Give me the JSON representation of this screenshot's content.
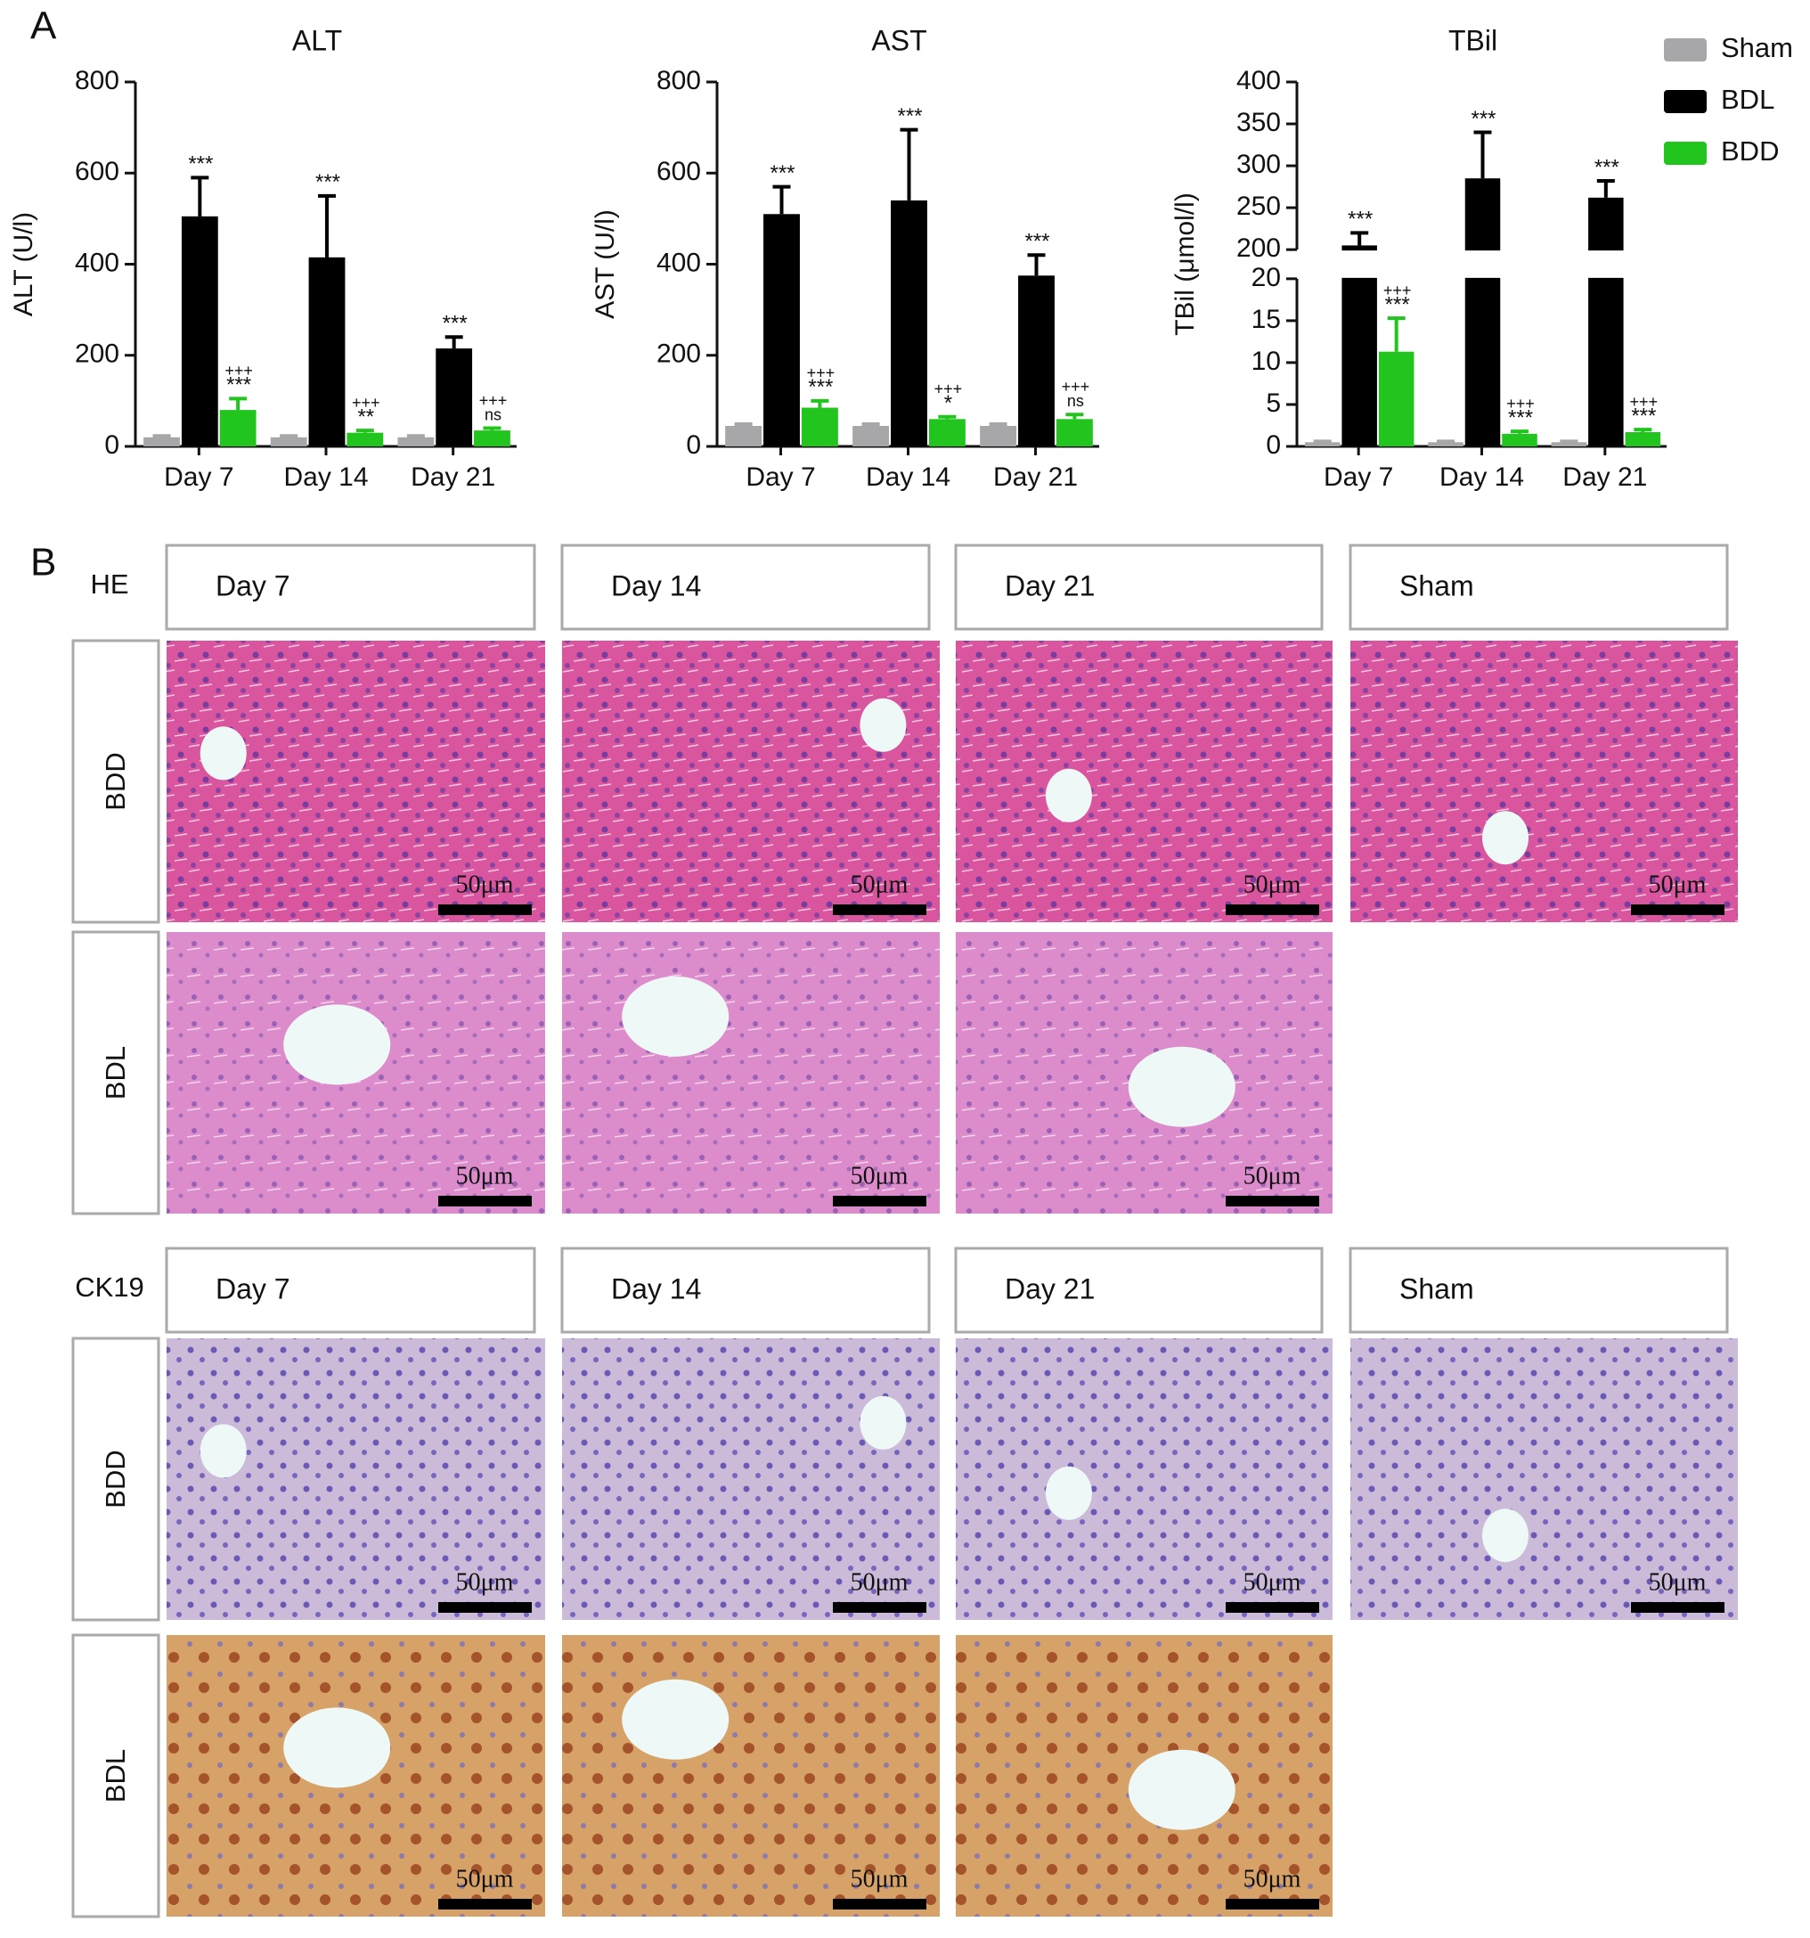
{
  "panel_a_label": "A",
  "chart_data": [
    {
      "type": "bar",
      "title": "ALT",
      "ylabel": "ALT (U/l)",
      "categories": [
        "Day 7",
        "Day 14",
        "Day 21"
      ],
      "ylim": [
        0,
        800
      ],
      "yticks": [
        0,
        200,
        400,
        600,
        800
      ],
      "series": [
        {
          "name": "Sham",
          "color": "#a7a7a9",
          "values": [
            20,
            20,
            20
          ],
          "errors": [
            3,
            3,
            3
          ]
        },
        {
          "name": "BDL",
          "color": "#000000",
          "values": [
            505,
            415,
            215
          ],
          "errors": [
            85,
            135,
            25
          ],
          "annotations": [
            [
              "***"
            ],
            [
              "***"
            ],
            [
              "***"
            ]
          ]
        },
        {
          "name": "BDD",
          "color": "#22c41e",
          "values": [
            80,
            30,
            35
          ],
          "errors": [
            25,
            5,
            5
          ],
          "annotations": [
            [
              "+++",
              "***"
            ],
            [
              "+++",
              "**"
            ],
            [
              "+++",
              "ns"
            ]
          ]
        }
      ]
    },
    {
      "type": "bar",
      "title": "AST",
      "ylabel": "AST (U/l)",
      "categories": [
        "Day 7",
        "Day 14",
        "Day 21"
      ],
      "ylim": [
        0,
        800
      ],
      "yticks": [
        0,
        200,
        400,
        600,
        800
      ],
      "series": [
        {
          "name": "Sham",
          "color": "#a7a7a9",
          "values": [
            45,
            45,
            45
          ],
          "errors": [
            4,
            4,
            4
          ]
        },
        {
          "name": "BDL",
          "color": "#000000",
          "values": [
            510,
            540,
            375
          ],
          "errors": [
            60,
            155,
            45
          ],
          "annotations": [
            [
              "***"
            ],
            [
              "***"
            ],
            [
              "***"
            ]
          ]
        },
        {
          "name": "BDD",
          "color": "#22c41e",
          "values": [
            85,
            60,
            60
          ],
          "errors": [
            15,
            5,
            10
          ],
          "annotations": [
            [
              "+++",
              "***"
            ],
            [
              "+++",
              "*"
            ],
            [
              "+++",
              "ns"
            ]
          ]
        }
      ]
    },
    {
      "type": "bar",
      "title": "TBil",
      "ylabel": "TBil (μmol/l)",
      "categories": [
        "Day 7",
        "Day 14",
        "Day 21"
      ],
      "ylim": [
        0,
        400
      ],
      "axis_break": [
        20,
        200
      ],
      "yticks": [
        0,
        5,
        10,
        15,
        20,
        200,
        250,
        300,
        350,
        400
      ],
      "legend": "upper right",
      "series": [
        {
          "name": "Sham",
          "color": "#a7a7a9",
          "values": [
            0.5,
            0.5,
            0.5
          ],
          "errors": [
            0.1,
            0.1,
            0.1
          ]
        },
        {
          "name": "BDL",
          "color": "#000000",
          "values": [
            205,
            285,
            262
          ],
          "errors": [
            15,
            55,
            20
          ],
          "annotations": [
            [
              "***"
            ],
            [
              "***"
            ],
            [
              "***"
            ]
          ]
        },
        {
          "name": "BDD",
          "color": "#22c41e",
          "values": [
            11.3,
            1.5,
            1.7
          ],
          "errors": [
            4,
            0.3,
            0.3
          ],
          "annotations": [
            [
              "+++",
              "***"
            ],
            [
              "+++",
              "***"
            ],
            [
              "+++",
              "***"
            ]
          ]
        }
      ]
    }
  ],
  "panel_b": {
    "label": "B",
    "scale_bar": "50μm",
    "sections": [
      {
        "stain": "HE",
        "columns": [
          "Day 7",
          "Day 14",
          "Day 21",
          "Sham"
        ],
        "rows": [
          "BDD",
          "BDL"
        ]
      },
      {
        "stain": "CK19",
        "columns": [
          "Day 7",
          "Day 14",
          "Day 21",
          "Sham"
        ],
        "rows": [
          "BDD",
          "BDL"
        ]
      }
    ]
  }
}
